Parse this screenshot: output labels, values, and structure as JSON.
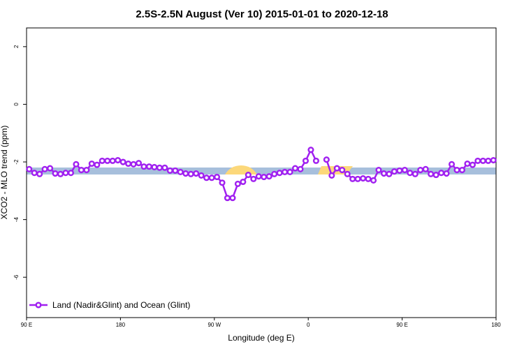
{
  "chart_data": {
    "type": "line",
    "title": "2.5S-2.5N August (Ver 10)   2015-01-01 to 2020-12-18",
    "x_label": "Longitude (deg E)",
    "y_label": "XCO2 - MLO trend (ppm)",
    "x": [
      92.5,
      97.5,
      102.5,
      107.5,
      112.5,
      117.5,
      122.5,
      127.5,
      132.5,
      137.5,
      142.5,
      147.5,
      152.5,
      157.5,
      162.5,
      167.5,
      172.5,
      177.5,
      182.5,
      187.5,
      192.5,
      197.5,
      202.5,
      207.5,
      212.5,
      217.5,
      222.5,
      227.5,
      232.5,
      237.5,
      242.5,
      247.5,
      252.5,
      257.5,
      262.5,
      267.5,
      272.5,
      277.5,
      282.5,
      287.5,
      292.5,
      297.5,
      302.5,
      307.5,
      312.5,
      317.5,
      322.5,
      327.5,
      332.5,
      337.5,
      342.5,
      347.5,
      352.5,
      357.5,
      362.5,
      367.5,
      372.5,
      377.5,
      382.5,
      387.5,
      392.5,
      397.5,
      402.5,
      407.5,
      412.5,
      417.5,
      422.5,
      427.5,
      432.5,
      437.5,
      442.5,
      447.5,
      452.5,
      457.5,
      462.5,
      467.5,
      472.5,
      477.5,
      482.5,
      487.5,
      492.5,
      497.5,
      502.5,
      507.5,
      512.5,
      517.5,
      522.5,
      527.5,
      532.5,
      537.5
    ],
    "series": [
      {
        "name": "Land (Nadir&Glint) and Ocean (Glint)",
        "color": "#a020f0",
        "values": [
          -2.25,
          -2.38,
          -2.42,
          -2.25,
          -2.22,
          -2.4,
          -2.42,
          -2.38,
          -2.38,
          -2.08,
          -2.28,
          -2.28,
          -2.06,
          -2.1,
          -1.96,
          -1.96,
          -1.96,
          -1.94,
          -2.0,
          -2.06,
          -2.08,
          -2.04,
          -2.16,
          -2.16,
          -2.18,
          -2.2,
          -2.2,
          -2.3,
          -2.3,
          -2.35,
          -2.4,
          -2.42,
          -2.4,
          -2.47,
          -2.55,
          -2.55,
          -2.52,
          -2.72,
          -3.25,
          -3.25,
          -2.76,
          -2.69,
          -2.45,
          -2.59,
          -2.5,
          -2.52,
          -2.5,
          -2.42,
          -2.38,
          -2.35,
          -2.35,
          -2.22,
          -2.25,
          -1.96,
          -1.58,
          -1.96,
          null,
          -1.92,
          -2.47,
          -2.22,
          -2.28,
          -2.42,
          -2.59,
          -2.59,
          -2.57,
          -2.59,
          -2.64,
          -2.28,
          -2.4,
          -2.42,
          -2.33,
          -2.3,
          -2.28,
          -2.38,
          -2.42,
          -2.28,
          -2.25,
          -2.42,
          -2.45,
          -2.38,
          -2.4,
          -2.08,
          -2.28,
          -2.28,
          -2.06,
          -2.1,
          -1.96,
          -1.96,
          -1.96,
          -1.94
        ]
      }
    ],
    "xlim": [
      90,
      540
    ],
    "xticks": [
      {
        "value": 90,
        "label": "90 E"
      },
      180,
      {
        "value": 270,
        "label": "90 W"
      },
      {
        "value": 360,
        "label": "0"
      },
      {
        "value": 450,
        "label": "90 E"
      },
      {
        "value": 540,
        "label": "180"
      }
    ],
    "ylim": [
      -7.4,
      2.65
    ],
    "yticks": [
      -6,
      -4,
      -2,
      0,
      2
    ],
    "legend": "lower left"
  }
}
